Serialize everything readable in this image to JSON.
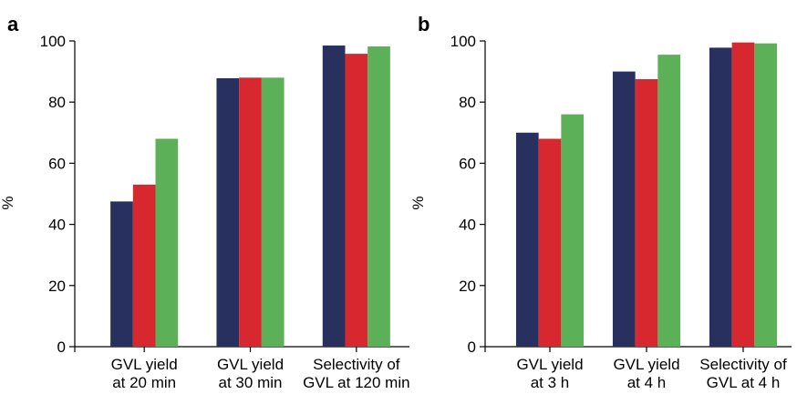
{
  "figure": {
    "panel_labels": [
      "a",
      "b"
    ]
  },
  "chart_data": [
    {
      "type": "bar",
      "panel": "a",
      "categories": [
        [
          "GVL yield",
          "at 20 min"
        ],
        [
          "GVL yield",
          "at 30 min"
        ],
        [
          "Selectivity of",
          "GVL at 120 min"
        ]
      ],
      "series": [
        {
          "color": "#27305e",
          "values": [
            47.5,
            87.8,
            98.5
          ]
        },
        {
          "color": "#d7282f",
          "values": [
            53.0,
            88.0,
            95.8
          ]
        },
        {
          "color": "#5cb057",
          "values": [
            68.0,
            88.0,
            98.2
          ]
        }
      ],
      "ylabel": "%",
      "ylim": [
        0,
        100
      ],
      "yticks": [
        0,
        20,
        40,
        60,
        80,
        100
      ],
      "grid": false,
      "legend": "none"
    },
    {
      "type": "bar",
      "panel": "b",
      "categories": [
        [
          "GVL yield",
          "at 3 h"
        ],
        [
          "GVL yield",
          "at 4 h"
        ],
        [
          "Selectivity of",
          "GVL at 4 h"
        ]
      ],
      "series": [
        {
          "color": "#27305e",
          "values": [
            70.0,
            90.0,
            97.8
          ]
        },
        {
          "color": "#d7282f",
          "values": [
            68.0,
            87.5,
            99.5
          ]
        },
        {
          "color": "#5cb057",
          "values": [
            76.0,
            95.5,
            99.2
          ]
        }
      ],
      "ylabel": "%",
      "ylim": [
        0,
        100
      ],
      "yticks": [
        0,
        20,
        40,
        60,
        80,
        100
      ],
      "grid": false,
      "legend": "none"
    }
  ]
}
